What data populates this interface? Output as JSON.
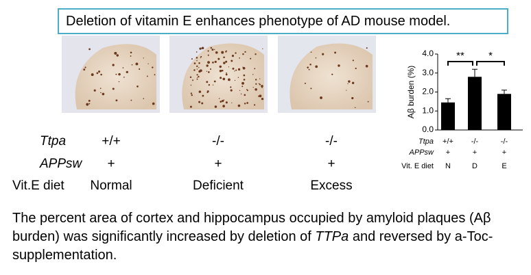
{
  "header": {
    "title": "Deletion of vitamin E enhances phenotype of AD mouse model."
  },
  "panel": {
    "rows": [
      {
        "label": "Ttpa",
        "values": [
          "+/+",
          "-/-",
          "-/-"
        ]
      },
      {
        "label": "APPsw",
        "values": [
          "+",
          "+",
          "+"
        ]
      },
      {
        "label": "Vit.E diet",
        "values": [
          "Normal",
          "Deficient",
          "Excess"
        ]
      }
    ]
  },
  "chart_data": {
    "type": "bar",
    "ylabel": "Aβ burden (%)",
    "xlabel": "Vit. E diet",
    "categories": [
      "N",
      "D",
      "E"
    ],
    "category_rows": [
      {
        "label": "Ttpa",
        "values": [
          "+/+",
          "-/-",
          "-/-"
        ]
      },
      {
        "label": "APPsw",
        "values": [
          "+",
          "+",
          "+"
        ]
      }
    ],
    "values": [
      1.45,
      2.8,
      1.9
    ],
    "errors": [
      0.2,
      0.4,
      0.2
    ],
    "color": "#000000",
    "annotations": [
      "**",
      "*"
    ],
    "ylim": [
      0,
      4
    ],
    "yticks": [
      {
        "value": 0,
        "label": "0.0"
      },
      {
        "value": 1,
        "label": "1.0"
      },
      {
        "value": 2,
        "label": "2.0"
      },
      {
        "value": 3,
        "label": "3.0"
      },
      {
        "value": 4,
        "label": "4.0"
      }
    ]
  },
  "caption": [
    "The percent area of cortex and hippocampus occupied by amyloid plaques (Aβ burden) was significantly increased by deletion of ",
    "TTPa",
    " and reversed by a-Toc-supplementation."
  ]
}
